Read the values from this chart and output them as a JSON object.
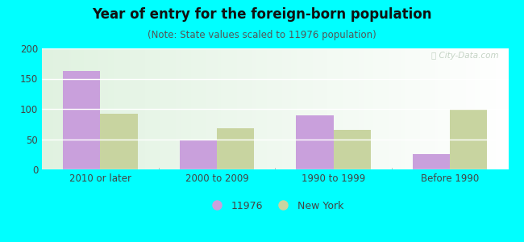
{
  "title": "Year of entry for the foreign-born population",
  "subtitle": "(Note: State values scaled to 11976 population)",
  "categories": [
    "2010 or later",
    "2000 to 2009",
    "1990 to 1999",
    "Before 1990"
  ],
  "series_11976": [
    163,
    50,
    90,
    25
  ],
  "series_newyork": [
    92,
    68,
    65,
    100
  ],
  "bar_color_11976": "#c9a0dc",
  "bar_color_newyork": "#c8d4a0",
  "background_outer": "#00ffff",
  "background_inner_topleft": "#e8f5e0",
  "background_inner_bottomright": "#f8fff8",
  "ylim": [
    0,
    200
  ],
  "yticks": [
    0,
    50,
    100,
    150,
    200
  ],
  "legend_label_1": "11976",
  "legend_label_2": "New York",
  "bar_width": 0.32,
  "title_fontsize": 12,
  "subtitle_fontsize": 8.5,
  "tick_fontsize": 8.5,
  "legend_fontsize": 9,
  "title_color": "#111111",
  "subtitle_color": "#555555",
  "tick_color": "#444444",
  "watermark_color": "#bbccbb",
  "grid_color": "#ffffff"
}
